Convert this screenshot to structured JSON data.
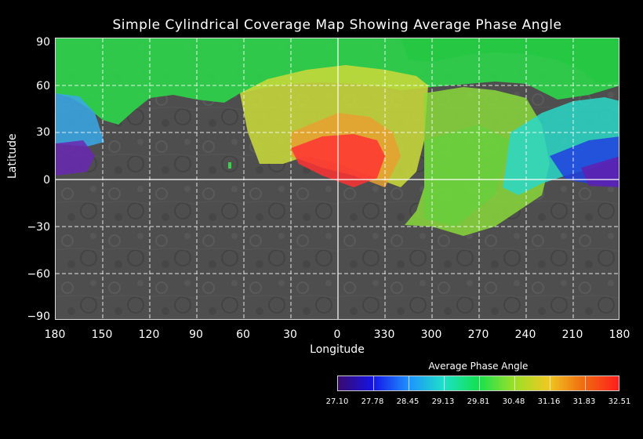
{
  "title": "Simple Cylindrical Coverage Map Showing Average Phase Angle",
  "axes": {
    "ylabel": "Latitude",
    "xlabel": "Longitude",
    "lat_ticks": [
      "90",
      "60",
      "30",
      "0",
      "−30",
      "−60",
      "−90"
    ],
    "lon_ticks": [
      "180",
      "150",
      "120",
      "90",
      "60",
      "30",
      "0",
      "330",
      "300",
      "270",
      "240",
      "210",
      "180"
    ]
  },
  "colorbar": {
    "title": "Average Phase Angle",
    "labels": [
      "27.10",
      "27.78",
      "28.45",
      "29.13",
      "29.81",
      "30.48",
      "31.16",
      "31.83",
      "32.51"
    ],
    "colors": [
      "#3a0a6e",
      "#1414e6",
      "#1e90ff",
      "#1ee0c8",
      "#14e050",
      "#9ae028",
      "#f0c820",
      "#f06a10",
      "#ff1e1e"
    ]
  },
  "colors": {
    "background": "#000000",
    "surface": "#4a4a4a",
    "grid": "#ffffff"
  }
}
